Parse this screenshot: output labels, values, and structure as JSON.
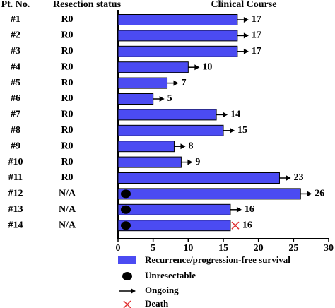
{
  "chart_data": {
    "type": "swimmer",
    "headers": {
      "patient": "Pt. No.",
      "resection": "Resection status",
      "course": "Clinical Course"
    },
    "categories": [
      "#1",
      "#2",
      "#3",
      "#4",
      "#5",
      "#6",
      "#7",
      "#8",
      "#9",
      "#10",
      "#11",
      "#12",
      "#13",
      "#14"
    ],
    "resection_status": [
      "R0",
      "R0",
      "R0",
      "R0",
      "R0",
      "R0",
      "R0",
      "R0",
      "R0",
      "R0",
      "R0",
      "N/A",
      "N/A",
      "N/A"
    ],
    "values": [
      17,
      17,
      17,
      10,
      7,
      5,
      14,
      15,
      8,
      9,
      23,
      26,
      16,
      16
    ],
    "ongoing": [
      true,
      true,
      true,
      true,
      true,
      true,
      true,
      true,
      true,
      true,
      true,
      true,
      true,
      false
    ],
    "unresectable": [
      false,
      false,
      false,
      false,
      false,
      false,
      false,
      false,
      false,
      false,
      false,
      true,
      true,
      true
    ],
    "death": [
      false,
      false,
      false,
      false,
      false,
      false,
      false,
      false,
      false,
      false,
      false,
      false,
      false,
      true
    ],
    "color": "#4b4bf2",
    "xlim": [
      0,
      30
    ],
    "xticks": [
      0,
      5,
      10,
      15,
      20,
      25,
      30
    ],
    "legend": {
      "bar": "Recurrence/progression-free survival",
      "unresectable": "Unresectable",
      "ongoing": "Ongoing",
      "death": "Death"
    }
  }
}
